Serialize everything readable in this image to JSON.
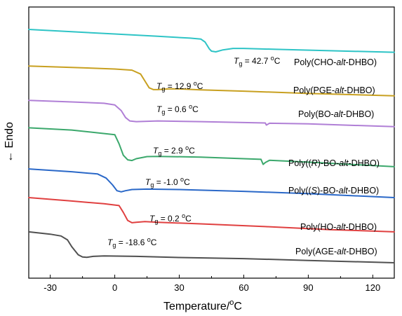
{
  "chart_data": {
    "type": "line",
    "title": "",
    "xlabel": "Temperature/°C",
    "ylabel": "← Endo",
    "xlim": [
      -40,
      130
    ],
    "xticks": [
      -30,
      0,
      30,
      60,
      90,
      120
    ],
    "yticks_shown": false,
    "grid": false,
    "legend": "none",
    "series": [
      {
        "name": "Poly(CHO-alt-DHBO)",
        "color": "#2ec4c6",
        "tg": "42.7",
        "x": [
          -40,
          -20,
          0,
          20,
          35,
          40,
          42,
          44,
          45,
          47,
          50,
          55,
          60,
          75,
          100,
          130
        ],
        "y": [
          0.0,
          -1.0,
          -2.0,
          -3.0,
          -3.8,
          -4.2,
          -5.5,
          -8.5,
          -9.5,
          -9.8,
          -9.0,
          -8.3,
          -8.3,
          -8.7,
          -9.3,
          -10.0
        ]
      },
      {
        "name": "Poly(PGE-alt-DHBO)",
        "color": "#c8a020",
        "tg": "12.9",
        "x": [
          -40,
          -20,
          0,
          8,
          12,
          14,
          16,
          18,
          20,
          25,
          30,
          40,
          60,
          90,
          130
        ],
        "y": [
          -16.0,
          -16.6,
          -17.3,
          -17.8,
          -19.5,
          -22.5,
          -25.5,
          -26.3,
          -26.3,
          -26.0,
          -26.0,
          -26.4,
          -27.0,
          -28.0,
          -29.0
        ]
      },
      {
        "name": "Poly(BO-alt-DHBO)",
        "color": "#b07fd6",
        "tg": "0.6",
        "x": [
          -40,
          -20,
          -5,
          0,
          3,
          5,
          7,
          10,
          20,
          40,
          60,
          70,
          70.5,
          72,
          90,
          130
        ],
        "y": [
          -31.0,
          -31.7,
          -32.3,
          -33.0,
          -35.5,
          -38.5,
          -40.0,
          -40.3,
          -40.0,
          -40.3,
          -40.7,
          -40.9,
          -41.8,
          -41.0,
          -41.3,
          -42.5
        ]
      },
      {
        "name": "Poly((R)-BO-alt-DHBO)",
        "color": "#3ba86c",
        "tg": "2.9",
        "x": [
          -40,
          -20,
          0,
          2,
          4,
          6,
          8,
          10,
          15,
          20,
          40,
          60,
          68,
          69,
          70,
          72,
          90,
          130
        ],
        "y": [
          -43.0,
          -44.0,
          -46.0,
          -50.0,
          -55.0,
          -57.0,
          -57.3,
          -56.5,
          -55.6,
          -55.5,
          -55.8,
          -56.5,
          -56.8,
          -59.0,
          -58.2,
          -57.2,
          -58.0,
          -60.0
        ]
      },
      {
        "name": "Poly((S)-BO-alt-DHBO)",
        "color": "#2a68c8",
        "tg": "-1.0",
        "x": [
          -40,
          -20,
          -8,
          -4,
          -1,
          1,
          3,
          5,
          8,
          15,
          30,
          60,
          90,
          130
        ],
        "y": [
          -61.0,
          -62.2,
          -63.2,
          -65.0,
          -68.0,
          -70.5,
          -71.0,
          -70.5,
          -70.0,
          -69.8,
          -70.0,
          -70.8,
          -71.8,
          -73.5
        ]
      },
      {
        "name": "Poly(HO-alt-DHBO)",
        "color": "#e04040",
        "tg": "0.2",
        "x": [
          -40,
          -20,
          -5,
          2,
          4,
          6,
          8,
          10,
          14,
          20,
          40,
          70,
          100,
          130
        ],
        "y": [
          -73.5,
          -75.0,
          -76.2,
          -77.0,
          -80.0,
          -83.5,
          -84.5,
          -84.3,
          -84.0,
          -84.3,
          -85.0,
          -86.2,
          -87.5,
          -88.5
        ]
      },
      {
        "name": "Poly(AGE-alt-DHBO)",
        "color": "#505050",
        "tg": "-18.6",
        "x": [
          -40,
          -30,
          -25,
          -22,
          -20,
          -17,
          -15,
          -13,
          -10,
          -5,
          10,
          30,
          60,
          90,
          130
        ],
        "y": [
          -88.5,
          -89.5,
          -90.3,
          -92.0,
          -95.0,
          -98.5,
          -99.5,
          -99.6,
          -99.2,
          -99.0,
          -99.2,
          -99.7,
          -100.2,
          -101.0,
          -102.0
        ]
      }
    ]
  },
  "annotations": [
    {
      "prefix": "T",
      "sub": "g",
      "text": " = 42.7 ",
      "sup": "o",
      "unit": "C"
    },
    {
      "prefix": "T",
      "sub": "g",
      "text": " = 12.9 ",
      "sup": "o",
      "unit": "C"
    },
    {
      "prefix": "T",
      "sub": "g",
      "text": " = 0.6 ",
      "sup": "o",
      "unit": "C"
    },
    {
      "prefix": "T",
      "sub": "g",
      "text": " = 2.9 ",
      "sup": "o",
      "unit": "C"
    },
    {
      "prefix": "T",
      "sub": "g",
      "text": " = -1.0 ",
      "sup": "o",
      "unit": "C"
    },
    {
      "prefix": "T",
      "sub": "g",
      "text": " = 0.2 ",
      "sup": "o",
      "unit": "C"
    },
    {
      "prefix": "T",
      "sub": "g",
      "text": " = -18.6 ",
      "sup": "o",
      "unit": "C"
    }
  ],
  "labels": [
    {
      "pre": "Poly(CHO-",
      "it": "alt",
      "post": "-DHBO)"
    },
    {
      "pre": "Poly(PGE-",
      "it": "alt",
      "post": "-DHBO)"
    },
    {
      "pre": "Poly(BO-",
      "it": "alt",
      "post": "-DHBO)"
    },
    {
      "pre": "Poly((",
      "it": "R",
      "mid": ")-BO-",
      "it2": "alt",
      "post": "-DHBO)"
    },
    {
      "pre": "Poly((",
      "it": "S",
      "mid": ")-BO-",
      "it2": "alt",
      "post": "-DHBO)"
    },
    {
      "pre": "Poly(HO-",
      "it": "alt",
      "post": "-DHBO)"
    },
    {
      "pre": "Poly(AGE-",
      "it": "alt",
      "post": "-DHBO)"
    }
  ],
  "axes": {
    "x_title_main": "Temperature/",
    "x_title_sup": "o",
    "x_title_unit": "C",
    "y_title": "← Endo"
  }
}
